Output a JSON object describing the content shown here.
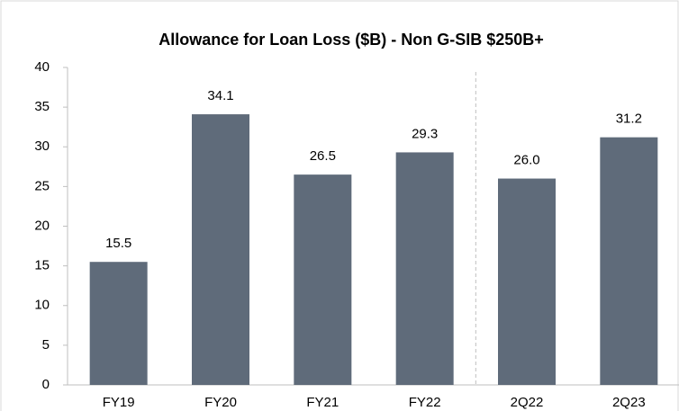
{
  "chart_data": {
    "type": "bar",
    "title": "Allowance for Loan Loss ($B) - Non G-SIB $250B+",
    "categories": [
      "FY19",
      "FY20",
      "FY21",
      "FY22",
      "2Q22",
      "2Q23"
    ],
    "values": [
      15.5,
      34.1,
      26.5,
      29.3,
      26.0,
      31.2
    ],
    "value_labels": [
      "15.5",
      "34.1",
      "26.5",
      "29.3",
      "26.0",
      "31.2"
    ],
    "color": "#5f6b7a",
    "ylim": [
      0,
      40
    ],
    "yticks": [
      0,
      5,
      10,
      15,
      20,
      25,
      30,
      35,
      40
    ],
    "grid": false
  }
}
